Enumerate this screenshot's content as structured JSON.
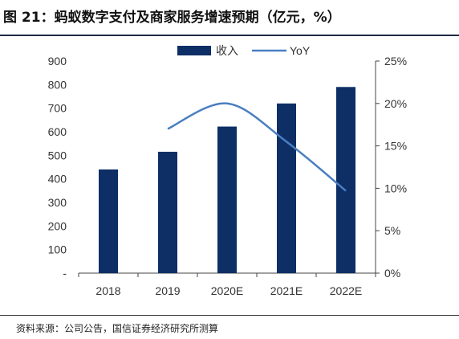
{
  "title": "图 21：蚂蚁数字支付及商家服务增速预期（亿元，%）",
  "source": "资料来源：公司公告，国信证券经济研究所测算",
  "colors": {
    "bar": "#0d2f66",
    "line": "#4a7fc1",
    "axis": "#444444"
  },
  "chart_data": {
    "type": "bar",
    "categories": [
      "2018",
      "2019",
      "2020E",
      "2021E",
      "2022E"
    ],
    "series": [
      {
        "name": "收入",
        "type": "bar",
        "axis": "left",
        "values": [
          440,
          515,
          622,
          720,
          790
        ]
      },
      {
        "name": "YoY",
        "type": "line",
        "axis": "right",
        "values": [
          null,
          0.17,
          0.2,
          0.155,
          0.097
        ]
      }
    ],
    "left_axis": {
      "min": 0,
      "max": 900,
      "step": 100,
      "ticks": [
        "-",
        "100",
        "200",
        "300",
        "400",
        "500",
        "600",
        "700",
        "800",
        "900"
      ]
    },
    "right_axis": {
      "min": 0,
      "max": 0.25,
      "step": 0.05,
      "ticks": [
        "0%",
        "5%",
        "10%",
        "15%",
        "20%",
        "25%"
      ]
    },
    "legend_position": "top-center",
    "grid": false
  }
}
